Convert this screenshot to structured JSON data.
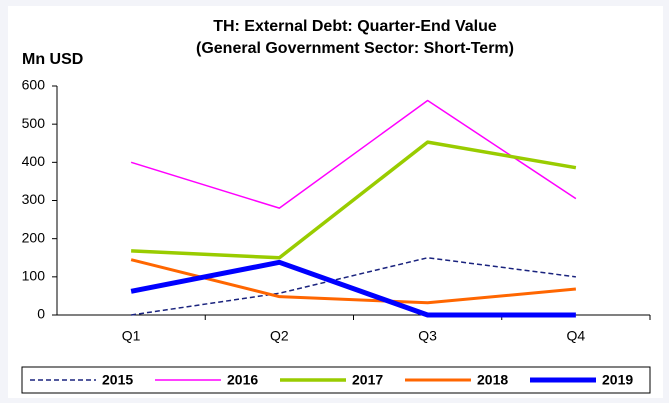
{
  "chart_data": {
    "type": "line",
    "title": [
      "TH: External Debt: Quarter-End Value",
      "(General Government Sector: Short-Term)"
    ],
    "y_label": "Mn USD",
    "categories": [
      "Q1",
      "Q2",
      "Q3",
      "Q4"
    ],
    "series": [
      {
        "name": "2015",
        "color": "#1a237e",
        "line_style": "dashed",
        "line_width": 1.5,
        "values": [
          0,
          57,
          150,
          100
        ]
      },
      {
        "name": "2016",
        "color": "#ff00ff",
        "line_style": "solid",
        "line_width": 1.5,
        "values": [
          400,
          280,
          562,
          305
        ]
      },
      {
        "name": "2017",
        "color": "#99cc00",
        "line_style": "solid",
        "line_width": 3.5,
        "values": [
          168,
          150,
          453,
          386
        ]
      },
      {
        "name": "2018",
        "color": "#ff6600",
        "line_style": "solid",
        "line_width": 3,
        "values": [
          145,
          48,
          32,
          68
        ]
      },
      {
        "name": "2019",
        "color": "#0000ff",
        "line_style": "solid",
        "line_width": 5,
        "values": [
          62,
          138,
          0,
          0
        ]
      }
    ],
    "ylim": [
      0,
      600
    ],
    "yticks": [
      0,
      100,
      200,
      300,
      400,
      500,
      600
    ],
    "legend": "bottom"
  }
}
